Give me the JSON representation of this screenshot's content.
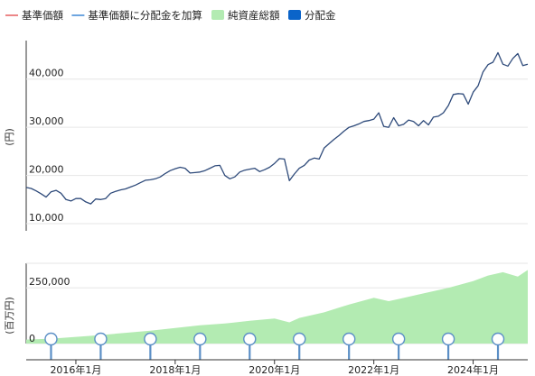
{
  "legend": {
    "items": [
      {
        "label": "基準価額",
        "color": "#e8696b",
        "shape": "line"
      },
      {
        "label": "基準価額に分配金を加算",
        "color": "#4a90d9",
        "shape": "line"
      },
      {
        "label": "純資産総額",
        "color": "#b3ebb2",
        "shape": "box"
      },
      {
        "label": "分配金",
        "color": "#0b64c9",
        "shape": "box"
      }
    ]
  },
  "chart_data": {
    "type": "line",
    "top_panel": {
      "ylabel": "(円)",
      "ylim": [
        8500,
        48000
      ],
      "ticks": [
        10000,
        20000,
        30000,
        40000
      ],
      "tick_labels": [
        "10,000",
        "20,000",
        "30,000",
        "40,000"
      ],
      "series_color": "#2e4a7a",
      "x": [
        2015.0,
        2015.1,
        2015.2,
        2015.3,
        2015.4,
        2015.5,
        2015.6,
        2015.7,
        2015.8,
        2015.9,
        2016.0,
        2016.1,
        2016.2,
        2016.3,
        2016.4,
        2016.5,
        2016.6,
        2016.7,
        2016.8,
        2016.9,
        2017.0,
        2017.1,
        2017.2,
        2017.3,
        2017.4,
        2017.5,
        2017.6,
        2017.7,
        2017.8,
        2017.9,
        2018.0,
        2018.1,
        2018.2,
        2018.3,
        2018.4,
        2018.5,
        2018.6,
        2018.7,
        2018.8,
        2018.9,
        2019.0,
        2019.1,
        2019.2,
        2019.3,
        2019.4,
        2019.5,
        2019.6,
        2019.7,
        2019.8,
        2019.9,
        2020.0,
        2020.1,
        2020.2,
        2020.3,
        2020.4,
        2020.5,
        2020.6,
        2020.7,
        2020.8,
        2020.9,
        2021.0,
        2021.1,
        2021.2,
        2021.3,
        2021.4,
        2021.5,
        2021.6,
        2021.7,
        2021.8,
        2021.9,
        2022.0,
        2022.1,
        2022.2,
        2022.3,
        2022.4,
        2022.5,
        2022.6,
        2022.7,
        2022.8,
        2022.9,
        2023.0,
        2023.1,
        2023.2,
        2023.3,
        2023.4,
        2023.5,
        2023.6,
        2023.7,
        2023.8,
        2023.9,
        2024.0,
        2024.1,
        2024.2,
        2024.3,
        2024.4,
        2024.5,
        2024.6,
        2024.7,
        2024.8,
        2024.9,
        2025.0,
        2025.1
      ],
      "values": [
        17500,
        17300,
        16800,
        16200,
        15500,
        16600,
        16900,
        16300,
        15000,
        14700,
        15200,
        15200,
        14500,
        14100,
        15100,
        15000,
        15200,
        16300,
        16700,
        17000,
        17200,
        17600,
        18000,
        18500,
        19000,
        19100,
        19300,
        19700,
        20400,
        21000,
        21400,
        21700,
        21500,
        20500,
        20600,
        20700,
        21000,
        21500,
        22000,
        22100,
        20000,
        19300,
        19700,
        20700,
        21100,
        21300,
        21500,
        20800,
        21200,
        21700,
        22500,
        23500,
        23400,
        18900,
        20300,
        21500,
        22100,
        23200,
        23600,
        23400,
        25700,
        26600,
        27500,
        28300,
        29200,
        30000,
        30300,
        30700,
        31200,
        31400,
        31700,
        33000,
        30200,
        30000,
        32000,
        30300,
        30600,
        31500,
        31200,
        30300,
        31400,
        30500,
        32100,
        32300,
        33000,
        34500,
        36800,
        37000,
        36900,
        34800,
        37300,
        38600,
        41500,
        43000,
        43500,
        45500,
        43100,
        42700,
        44300,
        45300,
        42800,
        43100
      ]
    },
    "bottom_panel": {
      "ylabel": "(百万円)",
      "ylim": [
        0,
        360000
      ],
      "ticks": [
        0,
        250000
      ],
      "tick_labels": [
        "0",
        "250,000"
      ],
      "fill_color": "#b3ebb2",
      "x": [
        2015.0,
        2015.5,
        2016.0,
        2016.5,
        2017.0,
        2017.5,
        2018.0,
        2018.5,
        2019.0,
        2019.5,
        2020.0,
        2020.3,
        2020.5,
        2021.0,
        2021.5,
        2022.0,
        2022.3,
        2022.5,
        2023.0,
        2023.5,
        2024.0,
        2024.3,
        2024.6,
        2024.9,
        2025.1
      ],
      "values": [
        18000,
        22000,
        30000,
        38000,
        48000,
        58000,
        70000,
        82000,
        90000,
        102000,
        112000,
        95000,
        115000,
        140000,
        175000,
        205000,
        190000,
        200000,
        225000,
        250000,
        280000,
        305000,
        320000,
        300000,
        330000
      ]
    },
    "distribution_x": [
      2015.5,
      2016.5,
      2017.5,
      2018.5,
      2019.5,
      2020.5,
      2021.5,
      2022.5,
      2023.5,
      2024.5
    ],
    "xlim": [
      2015.0,
      2025.1
    ],
    "x_ticks": [
      2016.0,
      2018.0,
      2020.0,
      2022.0,
      2024.0
    ],
    "x_tick_labels": [
      "2016年1月",
      "2018年1月",
      "2020年1月",
      "2022年1月",
      "2024年1月"
    ]
  }
}
